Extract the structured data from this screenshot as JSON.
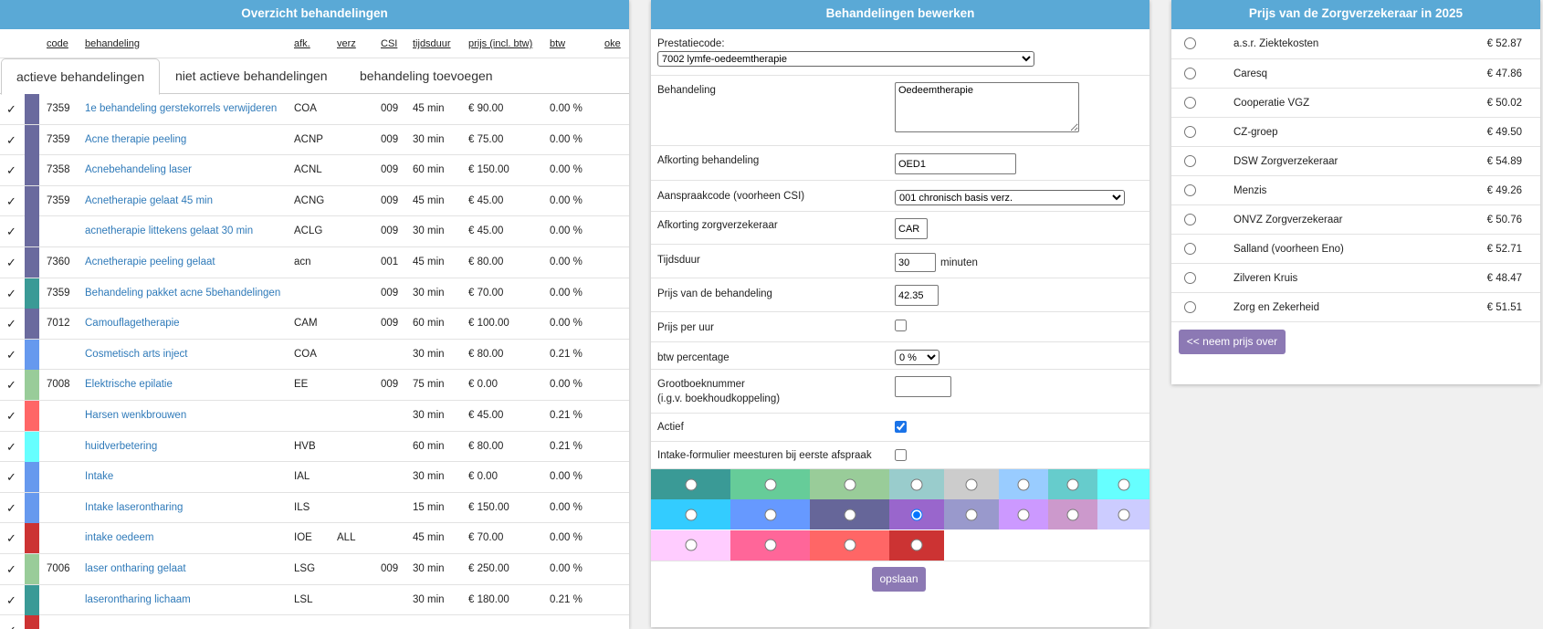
{
  "panel1": {
    "title": "Overzicht behandelingen",
    "headers": {
      "code": "code",
      "behandeling": "behandeling",
      "afk": "afk.",
      "verz": "verz",
      "csi": "CSI",
      "tijdsduur": "tijdsduur",
      "prijs": "prijs (incl. btw)",
      "btw": "btw",
      "oke": "oke"
    },
    "tabs": [
      "actieve behandelingen",
      "niet actieve behandelingen",
      "behandeling toevoegen"
    ],
    "rows": [
      {
        "check": "✓",
        "color": "#6a6a9e",
        "code": "7359",
        "name": "1e behandeling gerstekorrels verwijderen",
        "afk": "COA",
        "verz": "",
        "csi": "009",
        "time": "45 min",
        "price": "€ 90.00",
        "btw": "0.00 %"
      },
      {
        "check": "✓",
        "color": "#6a6a9e",
        "code": "7359",
        "name": "Acne therapie peeling",
        "afk": "ACNP",
        "verz": "",
        "csi": "009",
        "time": "30 min",
        "price": "€ 75.00",
        "btw": "0.00 %"
      },
      {
        "check": "✓",
        "color": "#6a6a9e",
        "code": "7358",
        "name": "Acnebehandeling laser",
        "afk": "ACNL",
        "verz": "",
        "csi": "009",
        "time": "60 min",
        "price": "€ 150.00",
        "btw": "0.00 %"
      },
      {
        "check": "✓",
        "color": "#6a6a9e",
        "code": "7359",
        "name": "Acnetherapie gelaat 45 min",
        "afk": "ACNG",
        "verz": "",
        "csi": "009",
        "time": "45 min",
        "price": "€ 45.00",
        "btw": "0.00 %"
      },
      {
        "check": "✓",
        "color": "#6a6a9e",
        "code": "",
        "name": "acnetherapie littekens gelaat 30 min",
        "afk": "ACLG",
        "verz": "",
        "csi": "009",
        "time": "30 min",
        "price": "€ 45.00",
        "btw": "0.00 %"
      },
      {
        "check": "✓",
        "color": "#6a6a9e",
        "code": "7360",
        "name": "Acnetherapie peeling gelaat",
        "afk": "acn",
        "verz": "",
        "csi": "001",
        "time": "45 min",
        "price": "€ 80.00",
        "btw": "0.00 %"
      },
      {
        "check": "✓",
        "color": "#3a9a96",
        "code": "7359",
        "name": "Behandeling pakket acne 5behandelingen",
        "afk": "",
        "verz": "",
        "csi": "009",
        "time": "30 min",
        "price": "€ 70.00",
        "btw": "0.00 %"
      },
      {
        "check": "✓",
        "color": "#6a6a9e",
        "code": "7012",
        "name": "Camouflagetherapie",
        "afk": "CAM",
        "verz": "",
        "csi": "009",
        "time": "60 min",
        "price": "€ 100.00",
        "btw": "0.00 %"
      },
      {
        "check": "✓",
        "color": "#6699ee",
        "code": "",
        "name": "Cosmetisch arts inject",
        "afk": "COA",
        "verz": "",
        "csi": "",
        "time": "30 min",
        "price": "€ 80.00",
        "btw": "0.21 %"
      },
      {
        "check": "✓",
        "color": "#99cc99",
        "code": "7008",
        "name": "Elektrische epilatie",
        "afk": "EE",
        "verz": "",
        "csi": "009",
        "time": "75 min",
        "price": "€ 0.00",
        "btw": "0.00 %"
      },
      {
        "check": "✓",
        "color": "#ff6666",
        "code": "",
        "name": "Harsen wenkbrouwen",
        "afk": "",
        "verz": "",
        "csi": "",
        "time": "30 min",
        "price": "€ 45.00",
        "btw": "0.21 %"
      },
      {
        "check": "✓",
        "color": "#66ffff",
        "code": "",
        "name": "huidverbetering",
        "afk": "HVB",
        "verz": "",
        "csi": "",
        "time": "60 min",
        "price": "€ 80.00",
        "btw": "0.21 %"
      },
      {
        "check": "✓",
        "color": "#6699ee",
        "code": "",
        "name": "Intake",
        "afk": "IAL",
        "verz": "",
        "csi": "",
        "time": "30 min",
        "price": "€ 0.00",
        "btw": "0.00 %"
      },
      {
        "check": "✓",
        "color": "#6699ee",
        "code": "",
        "name": "Intake laserontharing",
        "afk": "ILS",
        "verz": "",
        "csi": "",
        "time": "15 min",
        "price": "€ 150.00",
        "btw": "0.00 %"
      },
      {
        "check": "✓",
        "color": "#cc3333",
        "code": "",
        "name": "intake oedeem",
        "afk": "IOE",
        "verz": "ALL",
        "csi": "",
        "time": "45 min",
        "price": "€ 70.00",
        "btw": "0.00 %"
      },
      {
        "check": "✓",
        "color": "#99cc99",
        "code": "7006",
        "name": "laser ontharing gelaat",
        "afk": "LSG",
        "verz": "",
        "csi": "009",
        "time": "30 min",
        "price": "€ 250.00",
        "btw": "0.00 %"
      },
      {
        "check": "✓",
        "color": "#3a9a96",
        "code": "",
        "name": "laserontharing lichaam",
        "afk": "LSL",
        "verz": "",
        "csi": "",
        "time": "30 min",
        "price": "€ 180.00",
        "btw": "0.21 %"
      },
      {
        "check": "✓",
        "color": "#cc3333",
        "code": "",
        "name": "",
        "afk": "",
        "verz": "",
        "csi": "",
        "time": "",
        "price": "",
        "btw": ""
      }
    ]
  },
  "panel2": {
    "title": "Behandelingen bewerken",
    "prestatiecode_label": "Prestatiecode:",
    "prestatiecode_value": "7002 lymfe-oedeemtherapie",
    "behandeling_label": "Behandeling",
    "behandeling_value": "Oedeemtherapie",
    "afkorting_label": "Afkorting behandeling",
    "afkorting_value": "OED1",
    "aanspraak_label": "Aanspraakcode (voorheen CSI)",
    "aanspraak_value": "001 chronisch basis verz.",
    "afk_verz_label": "Afkorting zorgverzekeraar",
    "afk_verz_value": "CAR",
    "tijdsduur_label": "Tijdsduur",
    "tijdsduur_value": "30",
    "tijdsduur_unit": "minuten",
    "prijs_label": "Prijs van de behandeling",
    "prijs_value": "42.35",
    "prijs_uur_label": "Prijs per uur",
    "btw_label": "btw percentage",
    "btw_value": "0 %",
    "grootboek_label1": "Grootboeknummer",
    "grootboek_label2": "(i.g.v. boekhoudkoppeling)",
    "grootboek_value": "",
    "actief_label": "Actief",
    "actief_checked": true,
    "intake_label": "Intake-formulier meesturen bij eerste afspraak",
    "intake_checked": false,
    "colors": [
      "#3a9a96",
      "#66cc99",
      "#99cc99",
      "#99cccc",
      "#cccccc",
      "#99ccff",
      "#66cccc",
      "#66ffff",
      "#33ccff",
      "#6699ff",
      "#666699",
      "#9966cc",
      "#9999cc",
      "#cc99ff",
      "#cc99cc",
      "#ccccff",
      "#ffccff",
      "#ff6699",
      "#ff6666",
      "#cc3333"
    ],
    "selected_color_index": 11,
    "save_label": "opslaan"
  },
  "panel3": {
    "title": "Prijs van de Zorgverzekeraar in 2025",
    "insurers": [
      {
        "name": "a.s.r. Ziektekosten",
        "price": "€ 52.87"
      },
      {
        "name": "Caresq",
        "price": "€ 47.86"
      },
      {
        "name": "Cooperatie VGZ",
        "price": "€ 50.02"
      },
      {
        "name": "CZ-groep",
        "price": "€ 49.50"
      },
      {
        "name": "DSW Zorgverzekeraar",
        "price": "€ 54.89"
      },
      {
        "name": "Menzis",
        "price": "€ 49.26"
      },
      {
        "name": "ONVZ Zorgverzekeraar",
        "price": "€ 50.76"
      },
      {
        "name": "Salland (voorheen Eno)",
        "price": "€ 52.71"
      },
      {
        "name": "Zilveren Kruis",
        "price": "€ 48.47"
      },
      {
        "name": "Zorg en Zekerheid",
        "price": "€ 51.51"
      }
    ],
    "button_label": "<< neem prijs over"
  }
}
